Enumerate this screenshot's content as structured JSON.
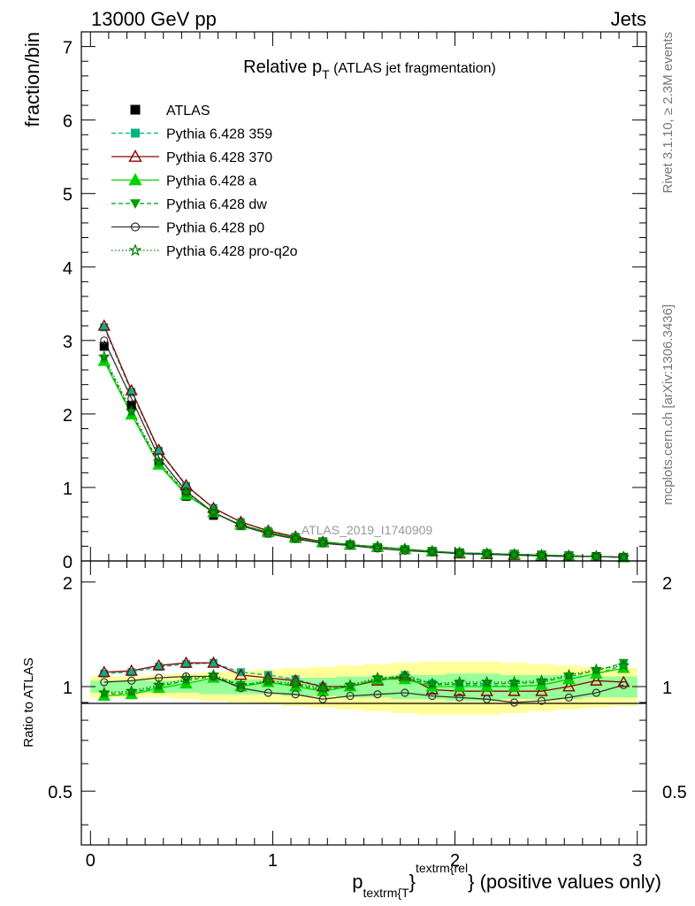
{
  "header": {
    "left": "13000 GeV pp",
    "right": "Jets",
    "side_top": "Rivet 3.1.10, ≥ 2.3M events",
    "side_bottom": "mcplots.cern.ch [arXiv:1306.3436]"
  },
  "colors": {
    "ATLAS": "#000000",
    "Pythia 6.428 359": "#00b386",
    "Pythia 6.428 370": "#8b0000",
    "Pythia 6.428 a": "#00d400",
    "Pythia 6.428 dw": "#00a000",
    "Pythia 6.428 p0": "#333333",
    "Pythia 6.428 pro-q2o": "#007a00",
    "band_outer": "#ffff99",
    "band_inner": "#99ff99"
  },
  "chart_data": [
    {
      "type": "line",
      "title_main": "Relative p",
      "title_sub": "T",
      "title_rest": "(ATLAS jet fragmentation)",
      "ylabel": "fraction/bin",
      "watermark": "ATLAS_2019_I1740909",
      "xlim": [
        -0.05,
        3.05
      ],
      "ylim": [
        0,
        7.2
      ],
      "yticks": [
        0,
        1,
        2,
        3,
        4,
        5,
        6,
        7
      ],
      "x": [
        0.075,
        0.225,
        0.375,
        0.525,
        0.675,
        0.825,
        0.975,
        1.125,
        1.275,
        1.425,
        1.575,
        1.725,
        1.875,
        2.025,
        2.175,
        2.325,
        2.475,
        2.625,
        2.775,
        2.925
      ],
      "series": [
        {
          "name": "ATLAS",
          "style": "data",
          "values": [
            2.92,
            2.12,
            1.33,
            0.88,
            0.62,
            0.48,
            0.38,
            0.31,
            0.26,
            0.22,
            0.18,
            0.15,
            0.13,
            0.11,
            0.1,
            0.09,
            0.08,
            0.07,
            0.06,
            0.05
          ]
        },
        {
          "name": "Pythia 6.428 359",
          "style": "dashed",
          "marker": "square",
          "values": [
            3.18,
            2.3,
            1.5,
            1.02,
            0.72,
            0.53,
            0.41,
            0.33,
            0.26,
            0.22,
            0.19,
            0.16,
            0.13,
            0.11,
            0.1,
            0.09,
            0.08,
            0.07,
            0.06,
            0.05
          ]
        },
        {
          "name": "Pythia 6.428 370",
          "style": "solid",
          "marker": "triangle-open",
          "values": [
            3.2,
            2.32,
            1.51,
            1.03,
            0.72,
            0.53,
            0.41,
            0.33,
            0.26,
            0.22,
            0.19,
            0.16,
            0.13,
            0.1,
            0.09,
            0.08,
            0.07,
            0.07,
            0.06,
            0.05
          ]
        },
        {
          "name": "Pythia 6.428 a",
          "style": "solid",
          "marker": "triangle",
          "values": [
            2.72,
            1.99,
            1.31,
            0.9,
            0.66,
            0.49,
            0.39,
            0.31,
            0.25,
            0.22,
            0.19,
            0.16,
            0.13,
            0.11,
            0.1,
            0.09,
            0.08,
            0.07,
            0.06,
            0.05
          ]
        },
        {
          "name": "Pythia 6.428 dw",
          "style": "dashed",
          "marker": "triangle-down",
          "values": [
            2.75,
            2.01,
            1.33,
            0.91,
            0.66,
            0.49,
            0.39,
            0.31,
            0.26,
            0.22,
            0.19,
            0.16,
            0.13,
            0.11,
            0.1,
            0.09,
            0.08,
            0.07,
            0.06,
            0.05
          ]
        },
        {
          "name": "Pythia 6.428 p0",
          "style": "solid",
          "marker": "circle-open",
          "values": [
            3.0,
            2.21,
            1.41,
            0.95,
            0.66,
            0.48,
            0.37,
            0.3,
            0.24,
            0.21,
            0.17,
            0.14,
            0.12,
            0.1,
            0.09,
            0.08,
            0.07,
            0.06,
            0.06,
            0.05
          ]
        },
        {
          "name": "Pythia 6.428 pro-q2o",
          "style": "dotted",
          "marker": "star",
          "values": [
            2.78,
            2.04,
            1.35,
            0.93,
            0.66,
            0.49,
            0.39,
            0.31,
            0.26,
            0.22,
            0.19,
            0.16,
            0.13,
            0.11,
            0.1,
            0.09,
            0.08,
            0.07,
            0.06,
            0.05
          ]
        }
      ]
    },
    {
      "type": "line",
      "ylabel": "Ratio to ATLAS",
      "xlabel_main": "p",
      "xlabel_sub": "textrm{T",
      "xlabel_brace": "}",
      "xlabel_sup": "textrm{rel",
      "xlabel_brace2": "}",
      "xlabel_rest": "(positive values only)",
      "xlim": [
        -0.05,
        3.05
      ],
      "ylim": [
        0.35,
        2.3
      ],
      "yticks": [
        0.5,
        1,
        2
      ],
      "xticks": [
        0,
        1,
        2,
        3
      ],
      "x": [
        0.075,
        0.225,
        0.375,
        0.525,
        0.675,
        0.825,
        0.975,
        1.125,
        1.275,
        1.425,
        1.575,
        1.725,
        1.875,
        2.025,
        2.175,
        2.325,
        2.475,
        2.625,
        2.775,
        2.925
      ],
      "band_outer": {
        "lo": [
          0.93,
          0.93,
          0.93,
          0.92,
          0.91,
          0.9,
          0.89,
          0.88,
          0.87,
          0.86,
          0.85,
          0.84,
          0.83,
          0.83,
          0.83,
          0.84,
          0.85,
          0.86,
          0.87,
          0.88
        ],
        "hi": [
          1.07,
          1.07,
          1.08,
          1.09,
          1.1,
          1.11,
          1.12,
          1.13,
          1.14,
          1.15,
          1.16,
          1.17,
          1.18,
          1.18,
          1.18,
          1.17,
          1.16,
          1.15,
          1.14,
          1.13
        ]
      },
      "band_inner": {
        "lo": [
          0.96,
          0.96,
          0.96,
          0.96,
          0.95,
          0.95,
          0.95,
          0.94,
          0.94,
          0.93,
          0.93,
          0.92,
          0.92,
          0.91,
          0.91,
          0.92,
          0.92,
          0.92,
          0.93,
          0.93
        ],
        "hi": [
          1.04,
          1.04,
          1.04,
          1.04,
          1.05,
          1.05,
          1.05,
          1.06,
          1.06,
          1.07,
          1.07,
          1.08,
          1.08,
          1.09,
          1.09,
          1.08,
          1.08,
          1.08,
          1.07,
          1.07
        ]
      },
      "series": [
        {
          "name": "Pythia 6.428 359",
          "style": "dashed",
          "marker": "square",
          "values": [
            1.09,
            1.1,
            1.14,
            1.16,
            1.17,
            1.1,
            1.08,
            1.05,
            1.0,
            1.0,
            1.05,
            1.08,
            1.02,
            1.01,
            1.01,
            1.0,
            1.01,
            1.05,
            1.09,
            1.15
          ]
        },
        {
          "name": "Pythia 6.428 370",
          "style": "solid",
          "marker": "triangle-open",
          "values": [
            1.1,
            1.11,
            1.15,
            1.17,
            1.17,
            1.08,
            1.06,
            1.04,
            1.0,
            1.0,
            1.04,
            1.07,
            0.98,
            0.97,
            0.97,
            0.97,
            0.97,
            1.0,
            1.04,
            1.03
          ]
        },
        {
          "name": "Pythia 6.428 a",
          "style": "solid",
          "marker": "triangle",
          "values": [
            0.94,
            0.95,
            0.99,
            1.02,
            1.06,
            1.0,
            1.03,
            1.0,
            0.97,
            1.0,
            1.05,
            1.05,
            1.0,
            1.0,
            1.0,
            1.0,
            1.01,
            1.05,
            1.09,
            1.13
          ]
        },
        {
          "name": "Pythia 6.428 dw",
          "style": "dashed",
          "marker": "triangle-down",
          "values": [
            0.95,
            0.96,
            1.0,
            1.04,
            1.07,
            1.01,
            1.03,
            1.01,
            0.98,
            1.0,
            1.05,
            1.06,
            1.01,
            1.02,
            1.02,
            1.02,
            1.03,
            1.07,
            1.11,
            1.17
          ]
        },
        {
          "name": "Pythia 6.428 p0",
          "style": "solid",
          "marker": "circle-open",
          "values": [
            1.03,
            1.04,
            1.06,
            1.07,
            1.07,
            0.99,
            0.96,
            0.95,
            0.92,
            0.94,
            0.95,
            0.96,
            0.94,
            0.93,
            0.92,
            0.9,
            0.91,
            0.93,
            0.96,
            1.01
          ]
        },
        {
          "name": "Pythia 6.428 pro-q2o",
          "style": "dotted",
          "marker": "star",
          "values": [
            0.96,
            0.97,
            1.01,
            1.05,
            1.08,
            1.01,
            1.04,
            1.02,
            0.99,
            1.01,
            1.06,
            1.07,
            1.02,
            1.03,
            1.03,
            1.03,
            1.04,
            1.08,
            1.12,
            1.15
          ]
        }
      ]
    }
  ]
}
